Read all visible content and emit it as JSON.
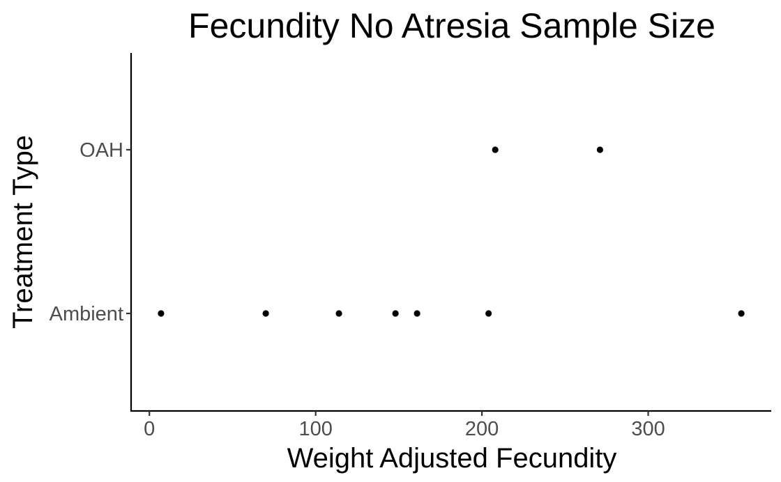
{
  "chart_data": {
    "type": "scatter",
    "title": "Fecundity No Atresia Sample Size",
    "xlabel": "Weight Adjusted Fecundity",
    "ylabel": "Treatment Type",
    "categories": [
      "Ambient",
      "OAH"
    ],
    "x_ticks": [
      0,
      100,
      200,
      300
    ],
    "xlim": [
      -11,
      374
    ],
    "grid": false,
    "legend": "none",
    "point_color": "#000000",
    "series": [
      {
        "points": [
          {
            "category": "OAH",
            "x": 208
          },
          {
            "category": "OAH",
            "x": 271
          },
          {
            "category": "Ambient",
            "x": 7
          },
          {
            "category": "Ambient",
            "x": 70
          },
          {
            "category": "Ambient",
            "x": 114
          },
          {
            "category": "Ambient",
            "x": 148
          },
          {
            "category": "Ambient",
            "x": 161
          },
          {
            "category": "Ambient",
            "x": 204
          },
          {
            "category": "Ambient",
            "x": 356
          }
        ]
      }
    ]
  }
}
